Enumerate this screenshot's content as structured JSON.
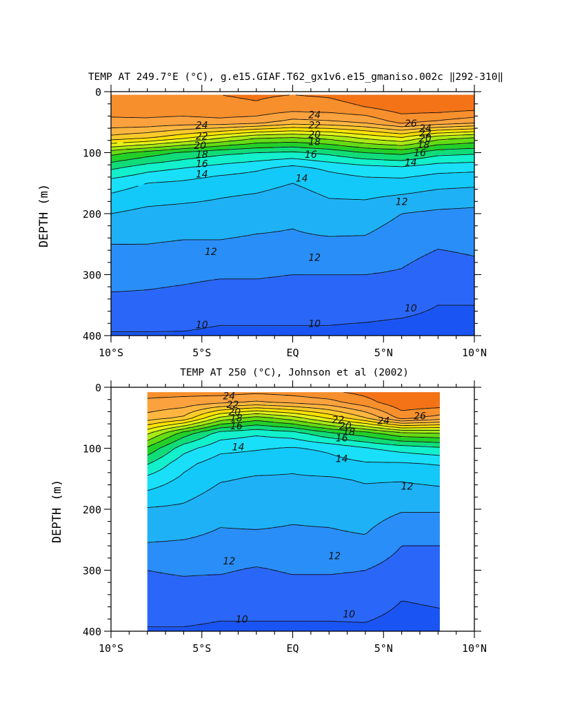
{
  "chart_data": [
    {
      "type": "heatmap",
      "subtype": "filled contour",
      "title": "TEMP AT 249.7°E (°C), g.e15.GIAF.T62_gx1v6.e15_gmaniso.002c ‖292-310‖",
      "xlabel": "",
      "ylabel": "DEPTH (m)",
      "xlim": [
        -10,
        10
      ],
      "ylim": [
        400,
        0
      ],
      "x_ticks": [
        -10,
        -5,
        0,
        5,
        10
      ],
      "x_tick_labels": [
        "10°S",
        "5°S",
        "EQ",
        "5°N",
        "10°N"
      ],
      "y_ticks": [
        0,
        100,
        200,
        300,
        400
      ],
      "y_tick_labels": [
        "0",
        "100",
        "200",
        "300",
        "400"
      ],
      "data_x_range": [
        -10,
        10
      ],
      "x": [
        -10,
        -8,
        -6,
        -4,
        -2,
        0,
        2,
        4,
        6,
        8,
        10
      ],
      "depth": [
        5,
        25,
        50,
        75,
        100,
        125,
        150,
        200,
        250,
        300,
        350,
        400
      ],
      "temperature": [
        [
          25.6,
          25.6,
          25.8,
          26.0,
          26.1,
          26.0,
          26.1,
          26.4,
          27.0,
          27.0,
          26.8
        ],
        [
          25.4,
          25.5,
          25.6,
          25.8,
          25.9,
          25.6,
          25.7,
          26.0,
          26.6,
          26.7,
          26.5
        ],
        [
          24.8,
          24.8,
          24.6,
          24.7,
          24.4,
          23.6,
          23.8,
          24.2,
          25.3,
          24.8,
          24.3
        ],
        [
          22.7,
          22.2,
          21.3,
          20.2,
          19.2,
          19.0,
          19.4,
          20.3,
          21.0,
          19.5,
          19.0
        ],
        [
          18.4,
          17.6,
          16.8,
          16.3,
          16.0,
          15.8,
          16.3,
          17.0,
          17.3,
          16.4,
          16.2
        ],
        [
          16.2,
          15.4,
          15.0,
          14.6,
          14.2,
          13.7,
          14.2,
          14.6,
          14.8,
          14.4,
          14.3
        ],
        [
          14.5,
          14.0,
          13.8,
          13.4,
          13.3,
          13.0,
          13.4,
          13.6,
          13.6,
          13.3,
          13.2
        ],
        [
          13.0,
          12.7,
          12.6,
          12.6,
          12.4,
          12.2,
          12.6,
          12.5,
          12.0,
          11.8,
          11.7
        ],
        [
          12.0,
          12.0,
          11.9,
          11.9,
          11.8,
          11.8,
          11.8,
          11.8,
          11.4,
          11.1,
          11.2
        ],
        [
          11.4,
          11.3,
          11.2,
          11.1,
          11.1,
          11.0,
          11.0,
          11.0,
          10.9,
          10.5,
          10.7
        ],
        [
          10.7,
          10.7,
          10.6,
          10.4,
          10.4,
          10.4,
          10.4,
          10.4,
          10.3,
          10.0,
          10.0
        ],
        [
          9.9,
          9.9,
          9.9,
          9.8,
          9.8,
          9.8,
          9.8,
          9.7,
          9.6,
          9.6,
          9.6
        ]
      ],
      "contour_levels": [
        10,
        11,
        12,
        13,
        14,
        15,
        16,
        17,
        18,
        19,
        20,
        21,
        22,
        23,
        24,
        25,
        26,
        27
      ],
      "contour_labels": [
        {
          "x": -5.0,
          "y": 55,
          "text": "24"
        },
        {
          "x": -5.0,
          "y": 73,
          "text": "22"
        },
        {
          "x": -5.1,
          "y": 88,
          "text": "20"
        },
        {
          "x": -5.0,
          "y": 103,
          "text": "18"
        },
        {
          "x": -5.0,
          "y": 118,
          "text": "16"
        },
        {
          "x": -5.0,
          "y": 135,
          "text": "14"
        },
        {
          "x": 1.2,
          "y": 38,
          "text": "24"
        },
        {
          "x": 1.2,
          "y": 55,
          "text": "22"
        },
        {
          "x": 1.2,
          "y": 70,
          "text": "20"
        },
        {
          "x": 1.2,
          "y": 82,
          "text": "18"
        },
        {
          "x": 1.0,
          "y": 103,
          "text": "16"
        },
        {
          "x": 0.5,
          "y": 142,
          "text": "14"
        },
        {
          "x": 6.5,
          "y": 52,
          "text": "26"
        },
        {
          "x": 7.3,
          "y": 60,
          "text": "24"
        },
        {
          "x": 7.3,
          "y": 68,
          "text": "22"
        },
        {
          "x": 7.3,
          "y": 76,
          "text": "20"
        },
        {
          "x": 7.2,
          "y": 87,
          "text": "18"
        },
        {
          "x": 7.0,
          "y": 100,
          "text": "16"
        },
        {
          "x": 6.5,
          "y": 116,
          "text": "14"
        },
        {
          "x": 6.0,
          "y": 180,
          "text": "12"
        },
        {
          "x": -4.5,
          "y": 262,
          "text": "12"
        },
        {
          "x": 1.2,
          "y": 272,
          "text": "12"
        },
        {
          "x": -5.0,
          "y": 382,
          "text": "10"
        },
        {
          "x": 1.2,
          "y": 380,
          "text": "10"
        },
        {
          "x": 6.5,
          "y": 355,
          "text": "10"
        }
      ]
    },
    {
      "type": "heatmap",
      "subtype": "filled contour",
      "title": "TEMP AT 250 (°C), Johnson et al (2002)",
      "xlabel": "",
      "ylabel": "DEPTH (m)",
      "xlim": [
        -10,
        10
      ],
      "ylim": [
        400,
        0
      ],
      "x_ticks": [
        -10,
        -5,
        0,
        5,
        10
      ],
      "x_tick_labels": [
        "10°S",
        "5°S",
        "EQ",
        "5°N",
        "10°N"
      ],
      "y_ticks": [
        0,
        100,
        200,
        300,
        400
      ],
      "y_tick_labels": [
        "0",
        "100",
        "200",
        "300",
        "400"
      ],
      "data_x_range": [
        -8,
        8.1
      ],
      "x": [
        -8,
        -6,
        -4,
        -2,
        0,
        2,
        4,
        6,
        8.1
      ],
      "depth": [
        8,
        25,
        50,
        75,
        100,
        125,
        150,
        200,
        250,
        300,
        350,
        400
      ],
      "temperature": [
        [
          25.3,
          25.3,
          25.4,
          25.2,
          25.4,
          25.8,
          26.3,
          27.0,
          27.0
        ],
        [
          24.8,
          24.6,
          24.2,
          23.8,
          24.2,
          24.6,
          25.6,
          26.7,
          26.7
        ],
        [
          23.6,
          22.8,
          19.8,
          18.6,
          19.6,
          21.2,
          23.0,
          25.4,
          24.6
        ],
        [
          20.2,
          17.6,
          15.6,
          15.2,
          15.6,
          16.8,
          17.6,
          18.8,
          19.0
        ],
        [
          17.8,
          15.4,
          14.3,
          14.1,
          13.9,
          14.2,
          14.9,
          15.4,
          15.8
        ],
        [
          16.1,
          14.3,
          13.5,
          13.4,
          13.2,
          13.6,
          13.9,
          13.9,
          14.1
        ],
        [
          14.7,
          13.8,
          13.1,
          12.9,
          12.9,
          12.9,
          13.1,
          13.1,
          13.3
        ],
        [
          12.9,
          12.8,
          12.3,
          12.4,
          12.2,
          12.3,
          12.5,
          12.1,
          12.1
        ],
        [
          12.1,
          12.0,
          11.8,
          11.8,
          11.8,
          11.8,
          11.9,
          11.1,
          11.1
        ],
        [
          11.0,
          11.1,
          11.1,
          10.9,
          11.1,
          11.1,
          11.0,
          10.6,
          10.6
        ],
        [
          10.6,
          10.6,
          10.4,
          10.4,
          10.4,
          10.4,
          10.5,
          10.0,
          10.1
        ],
        [
          9.9,
          9.9,
          9.8,
          9.8,
          9.8,
          9.8,
          9.8,
          9.6,
          9.7
        ]
      ],
      "contour_levels": [
        10,
        11,
        12,
        13,
        14,
        15,
        16,
        17,
        18,
        19,
        20,
        21,
        22,
        23,
        24,
        25,
        26,
        27
      ],
      "contour_labels": [
        {
          "x": -3.5,
          "y": 14,
          "text": "24"
        },
        {
          "x": -3.3,
          "y": 28,
          "text": "22"
        },
        {
          "x": -3.2,
          "y": 40,
          "text": "20"
        },
        {
          "x": -3.1,
          "y": 50,
          "text": "18"
        },
        {
          "x": -3.1,
          "y": 63,
          "text": "16"
        },
        {
          "x": -3.0,
          "y": 98,
          "text": "14"
        },
        {
          "x": 2.5,
          "y": 53,
          "text": "22"
        },
        {
          "x": 2.9,
          "y": 63,
          "text": "20"
        },
        {
          "x": 3.1,
          "y": 73,
          "text": "18"
        },
        {
          "x": 2.7,
          "y": 83,
          "text": "16"
        },
        {
          "x": 2.7,
          "y": 117,
          "text": "14"
        },
        {
          "x": 5.0,
          "y": 55,
          "text": "24"
        },
        {
          "x": 7.0,
          "y": 47,
          "text": "26"
        },
        {
          "x": 6.3,
          "y": 162,
          "text": "12"
        },
        {
          "x": -3.5,
          "y": 285,
          "text": "12"
        },
        {
          "x": 2.3,
          "y": 276,
          "text": "12"
        },
        {
          "x": -2.8,
          "y": 380,
          "text": "10"
        },
        {
          "x": 3.1,
          "y": 372,
          "text": "10"
        }
      ]
    }
  ]
}
